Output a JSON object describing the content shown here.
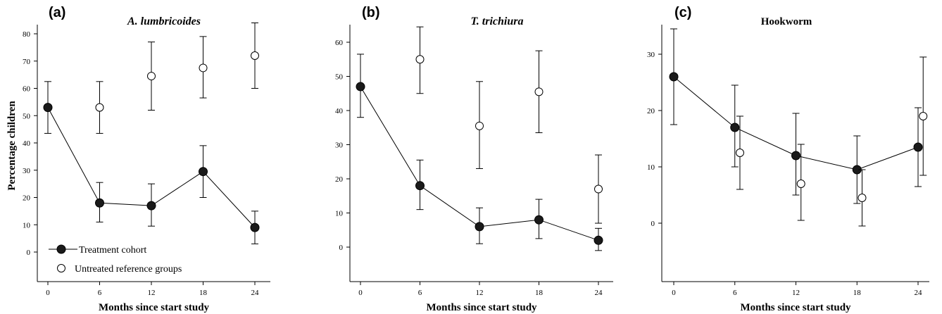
{
  "figure": {
    "ylabel": "Percentage children",
    "legend": {
      "treated": "Treatment cohort",
      "untreated": "Untreated reference groups"
    }
  },
  "chart_data": [
    {
      "type": "scatter",
      "panel": "(a)",
      "title": "A. lumbricoides",
      "title_italic": true,
      "xlabel": "Months since start study",
      "ylabel": "Percentage children",
      "x_ticks": [
        0,
        6,
        12,
        18,
        24
      ],
      "y_ticks": [
        0,
        10,
        20,
        30,
        40,
        50,
        60,
        70,
        80
      ],
      "ylim": [
        -10,
        86
      ],
      "legend_position": "bottom-left",
      "series": [
        {
          "name": "Treatment cohort",
          "marker": "filled",
          "connected": true,
          "points": [
            {
              "x": 0,
              "y": 53,
              "lo": 43.5,
              "hi": 62.5
            },
            {
              "x": 6,
              "y": 18,
              "lo": 11,
              "hi": 25.5
            },
            {
              "x": 12,
              "y": 17,
              "lo": 9.5,
              "hi": 25
            },
            {
              "x": 18,
              "y": 29.5,
              "lo": 20,
              "hi": 39
            },
            {
              "x": 24,
              "y": 9,
              "lo": 3,
              "hi": 15
            }
          ]
        },
        {
          "name": "Untreated reference groups",
          "marker": "open",
          "connected": false,
          "points": [
            {
              "x": 6,
              "y": 53,
              "lo": 43.5,
              "hi": 62.5
            },
            {
              "x": 12,
              "y": 64.5,
              "lo": 52,
              "hi": 77
            },
            {
              "x": 18,
              "y": 67.5,
              "lo": 56.5,
              "hi": 79
            },
            {
              "x": 24,
              "y": 72,
              "lo": 60,
              "hi": 84
            }
          ]
        }
      ]
    },
    {
      "type": "scatter",
      "panel": "(b)",
      "title": "T. trichiura",
      "title_italic": true,
      "xlabel": "Months since start study",
      "x_ticks": [
        0,
        6,
        12,
        18,
        24
      ],
      "y_ticks": [
        0,
        10,
        20,
        30,
        40,
        50,
        60
      ],
      "ylim": [
        -16,
        65
      ],
      "series": [
        {
          "name": "Treatment cohort",
          "marker": "filled",
          "connected": true,
          "points": [
            {
              "x": 0,
              "y": 47,
              "lo": 38,
              "hi": 56.5
            },
            {
              "x": 6,
              "y": 18,
              "lo": 11,
              "hi": 25.5
            },
            {
              "x": 12,
              "y": 6,
              "lo": 1,
              "hi": 11.5
            },
            {
              "x": 18,
              "y": 8,
              "lo": 2.5,
              "hi": 14
            },
            {
              "x": 24,
              "y": 2,
              "lo": -1,
              "hi": 5.5
            }
          ]
        },
        {
          "name": "Untreated reference groups",
          "marker": "open",
          "connected": false,
          "points": [
            {
              "x": 6,
              "y": 55,
              "lo": 45,
              "hi": 64.5
            },
            {
              "x": 12,
              "y": 35.5,
              "lo": 23,
              "hi": 48.5
            },
            {
              "x": 18,
              "y": 45.5,
              "lo": 33.5,
              "hi": 57.5
            },
            {
              "x": 24,
              "y": 17,
              "lo": 7,
              "hi": 27
            }
          ]
        }
      ]
    },
    {
      "type": "scatter",
      "panel": "(c)",
      "title": "Hookworm",
      "title_italic": false,
      "xlabel": "Months since start study",
      "x_ticks": [
        0,
        6,
        12,
        18,
        24
      ],
      "y_ticks": [
        0,
        10,
        20,
        30
      ],
      "ylim": [
        -10.5,
        35
      ],
      "series": [
        {
          "name": "Treatment cohort",
          "marker": "filled",
          "connected": true,
          "points": [
            {
              "x": 0,
              "y": 26,
              "lo": 17.5,
              "hi": 34.5
            },
            {
              "x": 6,
              "y": 17,
              "lo": 10,
              "hi": 24.5
            },
            {
              "x": 12,
              "y": 12,
              "lo": 5,
              "hi": 19.5
            },
            {
              "x": 18,
              "y": 9.5,
              "lo": 3.5,
              "hi": 15.5
            },
            {
              "x": 24,
              "y": 13.5,
              "lo": 6.5,
              "hi": 20.5
            }
          ]
        },
        {
          "name": "Untreated reference groups",
          "marker": "open",
          "connected": false,
          "points": [
            {
              "x": 6.5,
              "y": 12.5,
              "lo": 6,
              "hi": 19
            },
            {
              "x": 12.5,
              "y": 7,
              "lo": 0.5,
              "hi": 14
            },
            {
              "x": 18.5,
              "y": 4.5,
              "lo": -0.5,
              "hi": 9.5
            },
            {
              "x": 24.5,
              "y": 19,
              "lo": 8.5,
              "hi": 29.5
            }
          ]
        }
      ]
    }
  ]
}
